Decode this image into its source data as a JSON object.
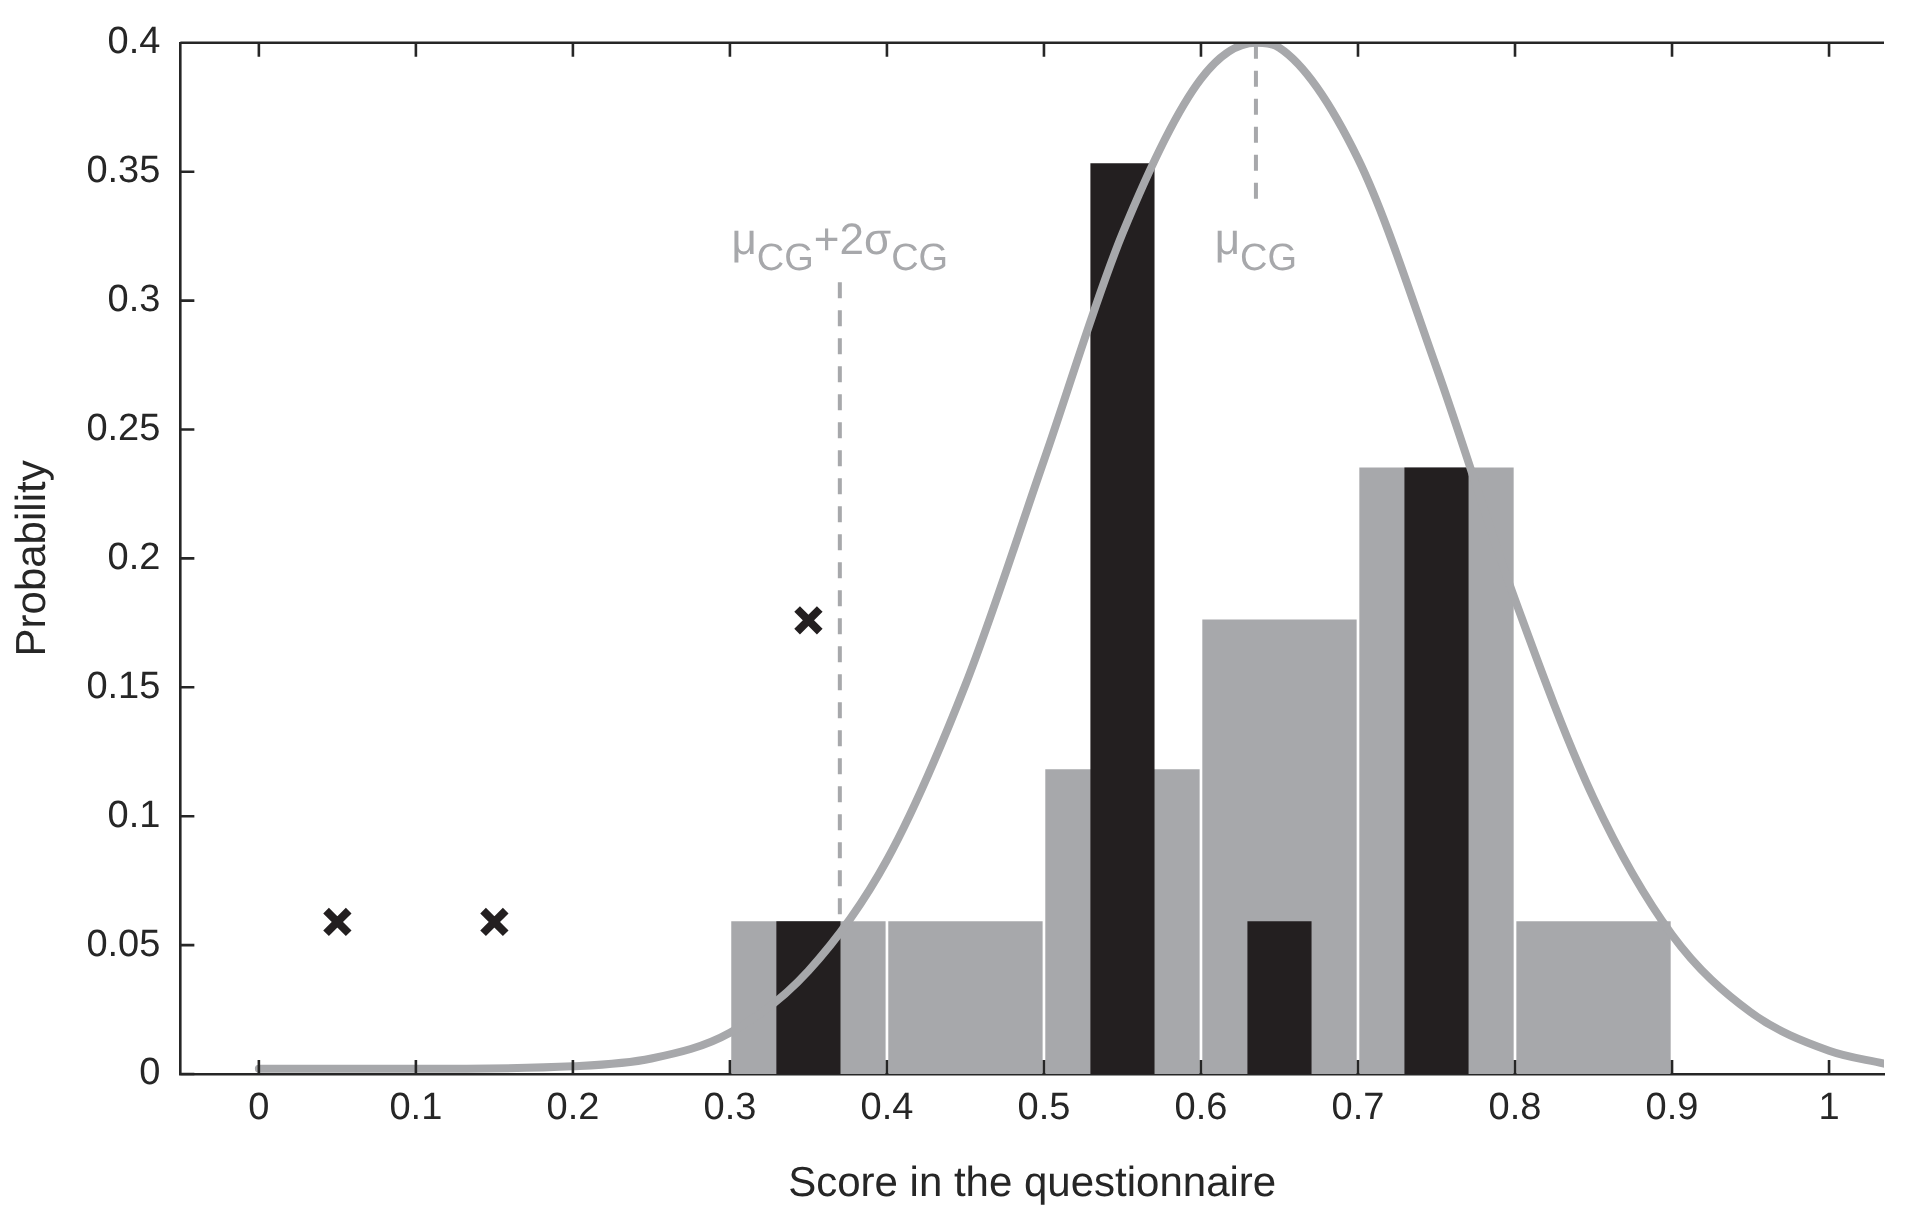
{
  "chart_data": {
    "type": "histogram",
    "xlabel": "Score in the questionnaire",
    "ylabel": "Probability",
    "xlim": [
      -0.05,
      1.035
    ],
    "ylim": [
      0,
      0.4
    ],
    "xticks": [
      0,
      0.1,
      0.2,
      0.3,
      0.4,
      0.5,
      0.6,
      0.7,
      0.8,
      0.9,
      1
    ],
    "yticks": [
      0,
      0.05,
      0.1,
      0.15,
      0.2,
      0.25,
      0.3,
      0.35,
      0.4
    ],
    "grid": false,
    "legend": false,
    "series": [
      {
        "color": "#a7a8ab",
        "bins": [
          0.3,
          0.4,
          0.5,
          0.6,
          0.7,
          0.8,
          0.9
        ],
        "values": [
          0.059,
          0.059,
          0.118,
          0.176,
          0.235,
          0.059
        ]
      },
      {
        "type": "bar",
        "color": "#231f20",
        "x": [
          0.35,
          0.55,
          0.65,
          0.75
        ],
        "values": [
          0.059,
          0.353,
          0.059,
          0.235
        ]
      },
      {
        "type": "line",
        "color": "#a7a8ab",
        "line_style": "solid",
        "marker": "none",
        "x": [
          0,
          0.1,
          0.2,
          0.25,
          0.3,
          0.35,
          0.4,
          0.45,
          0.5,
          0.55,
          0.6,
          0.635,
          0.65,
          0.7,
          0.75,
          0.8,
          0.85,
          0.9,
          0.95,
          1,
          1.035
        ],
        "values": [
          0.002,
          0.002,
          0.003,
          0.006,
          0.016,
          0.04,
          0.083,
          0.151,
          0.238,
          0.326,
          0.386,
          0.4,
          0.398,
          0.355,
          0.274,
          0.184,
          0.107,
          0.054,
          0.024,
          0.009,
          0.004
        ]
      },
      {
        "type": "scatter",
        "color": "#231f20",
        "marker": "cross",
        "x": [
          0.05,
          0.15,
          0.35
        ],
        "values": [
          0.059,
          0.059,
          0.176
        ]
      }
    ],
    "ref_lines": [
      {
        "axis": "x",
        "value": 0.37,
        "label": "μ$_{CG}$+2σ$_{CG}$",
        "color": "#a7a8ab",
        "line_style": "dashed"
      },
      {
        "axis": "x",
        "value": 0.635,
        "label": "μ$_{CG}$",
        "color": "#a7a8ab",
        "line_style": "dashed"
      }
    ]
  }
}
